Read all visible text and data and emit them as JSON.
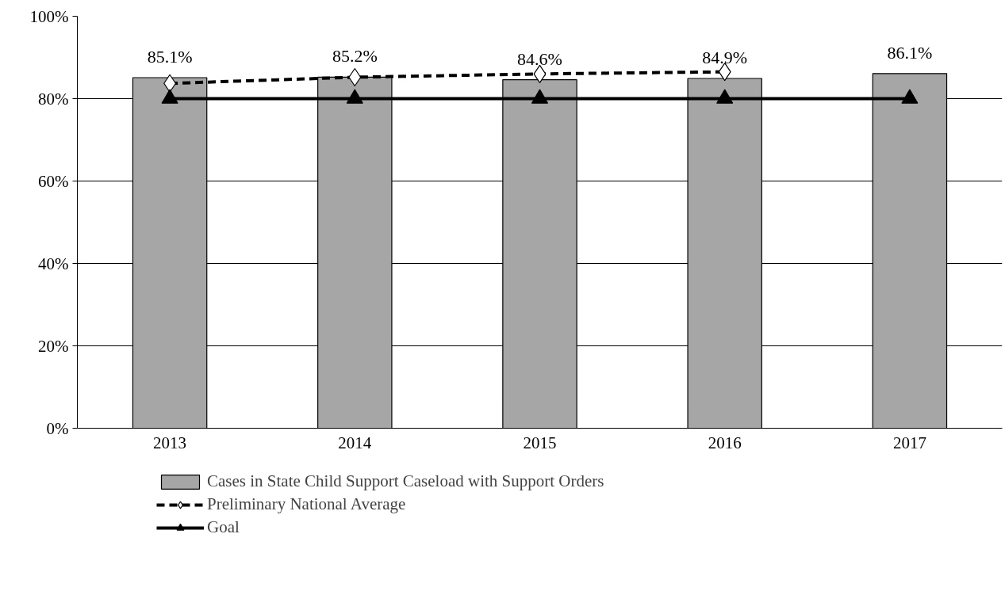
{
  "chart_data": {
    "type": "bar",
    "categories": [
      "2013",
      "2014",
      "2015",
      "2016",
      "2017"
    ],
    "series": [
      {
        "name": "Cases in State Child Support Caseload with Support Orders",
        "color": "#a6a6a6",
        "values": [
          85.1,
          85.2,
          84.6,
          84.9,
          86.1
        ],
        "value_labels": [
          "85.1%",
          "85.2%",
          "84.6%",
          "84.9%",
          "86.1%"
        ]
      },
      {
        "name": "Preliminary National Average",
        "type": "line",
        "color": "#000000",
        "marker": "diamond",
        "line_style": "dashed",
        "values": [
          83.7,
          85.2,
          86.0,
          86.5,
          null
        ]
      },
      {
        "name": "Goal",
        "type": "line",
        "color": "#000000",
        "marker": "triangle",
        "line_style": "solid",
        "values": [
          80,
          80,
          80,
          80,
          80
        ]
      }
    ],
    "ylim": [
      0,
      100
    ],
    "yticks": [
      {
        "value": 0,
        "label": "0%"
      },
      {
        "value": 20,
        "label": "20%"
      },
      {
        "value": 40,
        "label": "40%"
      },
      {
        "value": 60,
        "label": "60%"
      },
      {
        "value": 80,
        "label": "80%"
      },
      {
        "value": 100,
        "label": "100%"
      }
    ],
    "grid": "y",
    "legend": "bottom"
  }
}
